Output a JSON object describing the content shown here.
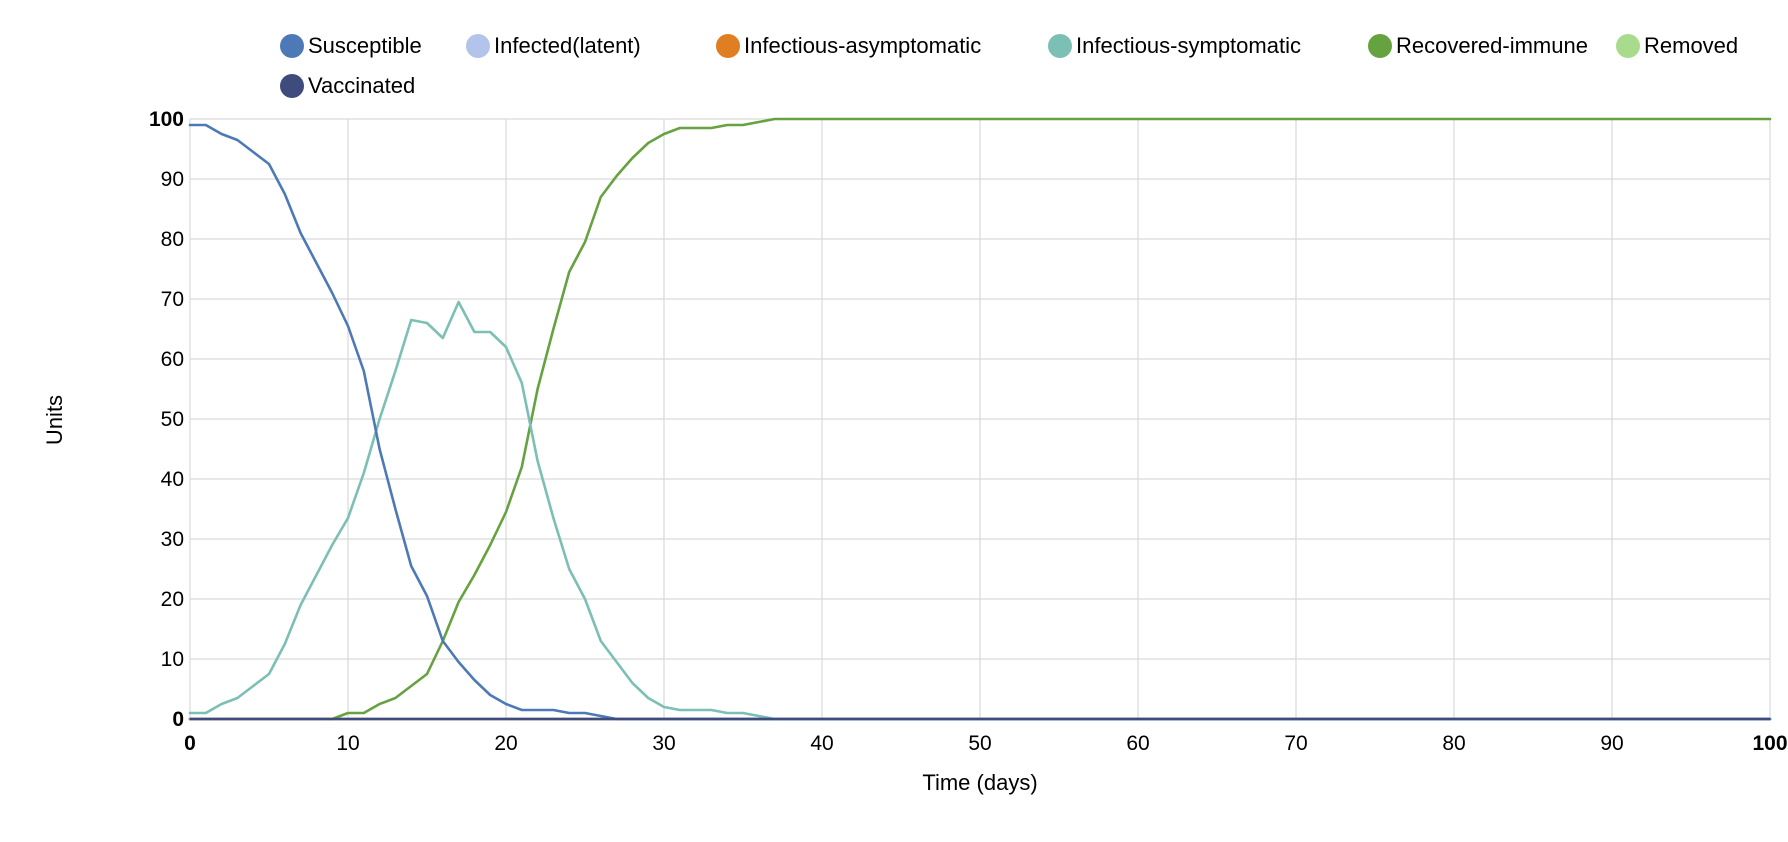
{
  "chart_data": {
    "type": "line",
    "title": "",
    "xlabel": "Time (days)",
    "ylabel": "Units",
    "xlim": [
      0,
      100
    ],
    "ylim": [
      0,
      100
    ],
    "x_ticks": [
      0,
      10,
      20,
      30,
      40,
      50,
      60,
      70,
      80,
      90,
      100
    ],
    "y_ticks": [
      0,
      10,
      20,
      30,
      40,
      50,
      60,
      70,
      80,
      90,
      100
    ],
    "grid": true,
    "legend_position": "top",
    "series": [
      {
        "name": "Susceptible",
        "color": "#4e79b7",
        "points": [
          [
            0,
            99
          ],
          [
            1,
            99
          ],
          [
            2,
            97.5
          ],
          [
            3,
            96.5
          ],
          [
            4,
            94.5
          ],
          [
            5,
            92.5
          ],
          [
            6,
            87.5
          ],
          [
            7,
            81
          ],
          [
            8,
            76
          ],
          [
            9,
            71
          ],
          [
            10,
            65.5
          ],
          [
            11,
            58
          ],
          [
            12,
            45
          ],
          [
            13,
            35
          ],
          [
            14,
            25.5
          ],
          [
            15,
            20.5
          ],
          [
            16,
            13
          ],
          [
            17,
            9.5
          ],
          [
            18,
            6.5
          ],
          [
            19,
            4
          ],
          [
            20,
            2.5
          ],
          [
            21,
            1.5
          ],
          [
            22,
            1.5
          ],
          [
            23,
            1.5
          ],
          [
            24,
            1
          ],
          [
            25,
            1
          ],
          [
            26,
            0.5
          ],
          [
            27,
            0
          ],
          [
            100,
            0
          ]
        ]
      },
      {
        "name": "Infected(latent)",
        "color": "#b3c3ea",
        "points": [
          [
            0,
            0
          ],
          [
            100,
            0
          ]
        ]
      },
      {
        "name": "Infectious-asymptomatic",
        "color": "#e07e22",
        "points": [
          [
            0,
            0
          ],
          [
            100,
            0
          ]
        ]
      },
      {
        "name": "Infectious-symptomatic",
        "color": "#7bbfb5",
        "points": [
          [
            0,
            1
          ],
          [
            1,
            1
          ],
          [
            2,
            2.5
          ],
          [
            3,
            3.5
          ],
          [
            4,
            5.5
          ],
          [
            5,
            7.5
          ],
          [
            6,
            12.5
          ],
          [
            7,
            19
          ],
          [
            8,
            24
          ],
          [
            9,
            29
          ],
          [
            10,
            33.5
          ],
          [
            11,
            41
          ],
          [
            12,
            50
          ],
          [
            13,
            58
          ],
          [
            14,
            66.5
          ],
          [
            15,
            66
          ],
          [
            16,
            63.5
          ],
          [
            17,
            69.5
          ],
          [
            18,
            64.5
          ],
          [
            19,
            64.5
          ],
          [
            20,
            62
          ],
          [
            21,
            56
          ],
          [
            22,
            43
          ],
          [
            23,
            33.5
          ],
          [
            24,
            25
          ],
          [
            25,
            20
          ],
          [
            26,
            13
          ],
          [
            27,
            9.5
          ],
          [
            28,
            6
          ],
          [
            29,
            3.5
          ],
          [
            30,
            2
          ],
          [
            31,
            1.5
          ],
          [
            32,
            1.5
          ],
          [
            33,
            1.5
          ],
          [
            34,
            1
          ],
          [
            35,
            1
          ],
          [
            36,
            0.5
          ],
          [
            37,
            0
          ],
          [
            100,
            0
          ]
        ]
      },
      {
        "name": "Recovered-immune",
        "color": "#66a23f",
        "points": [
          [
            0,
            0
          ],
          [
            9,
            0
          ],
          [
            10,
            1
          ],
          [
            11,
            1
          ],
          [
            12,
            2.5
          ],
          [
            13,
            3.5
          ],
          [
            14,
            5.5
          ],
          [
            15,
            7.5
          ],
          [
            16,
            13
          ],
          [
            17,
            19.5
          ],
          [
            18,
            24
          ],
          [
            19,
            29
          ],
          [
            20,
            34.5
          ],
          [
            21,
            42
          ],
          [
            22,
            55
          ],
          [
            23,
            65
          ],
          [
            24,
            74.5
          ],
          [
            25,
            79.5
          ],
          [
            26,
            87
          ],
          [
            27,
            90.5
          ],
          [
            28,
            93.5
          ],
          [
            29,
            96
          ],
          [
            30,
            97.5
          ],
          [
            31,
            98.5
          ],
          [
            32,
            98.5
          ],
          [
            33,
            98.5
          ],
          [
            34,
            99
          ],
          [
            35,
            99
          ],
          [
            36,
            99.5
          ],
          [
            37,
            100
          ],
          [
            100,
            100
          ]
        ]
      },
      {
        "name": "Removed",
        "color": "#a9db8c",
        "points": [
          [
            0,
            0
          ],
          [
            100,
            0
          ]
        ]
      },
      {
        "name": "Vaccinated",
        "color": "#3f4a7d",
        "points": [
          [
            0,
            0
          ],
          [
            100,
            0
          ]
        ]
      }
    ]
  }
}
